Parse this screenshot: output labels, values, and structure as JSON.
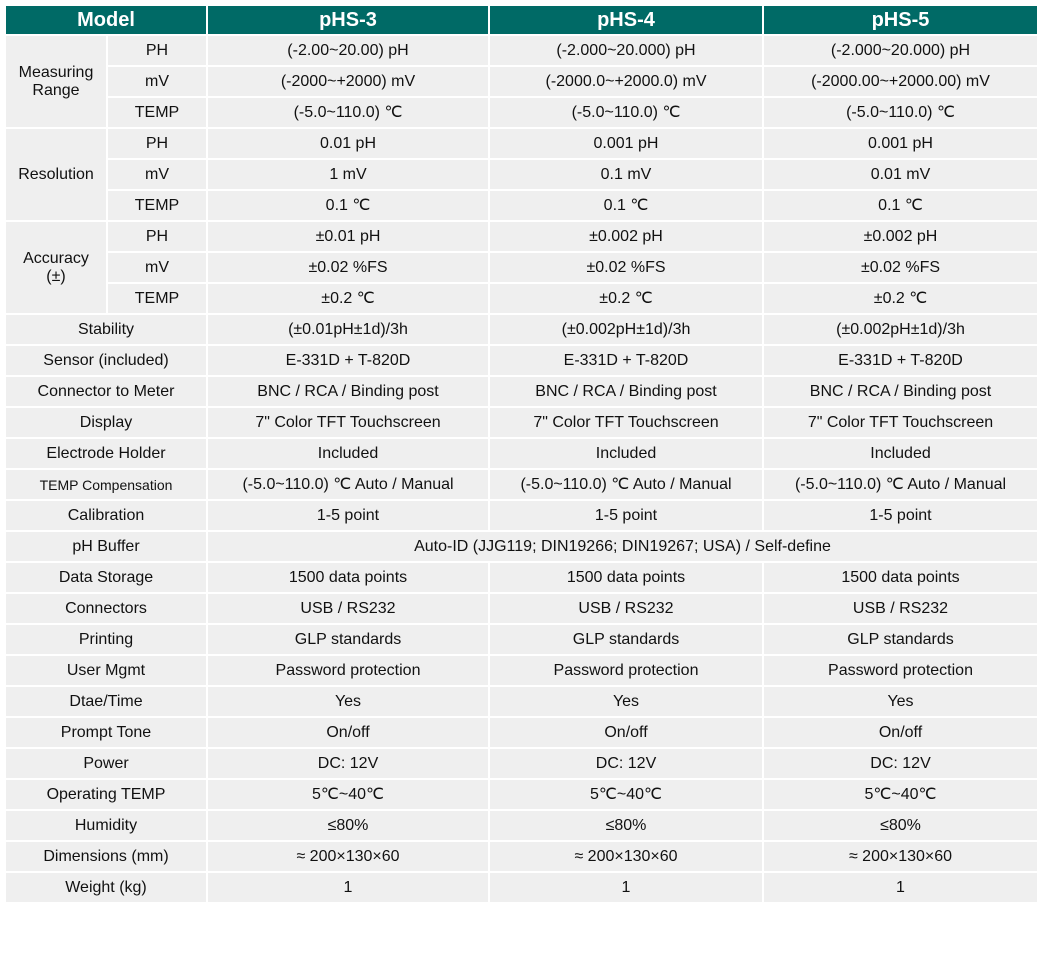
{
  "colors": {
    "header": "#006a66",
    "cell": "#efefef"
  },
  "header": [
    "Model",
    "pHS-3",
    "pHS-4",
    "pHS-5"
  ],
  "groups": [
    {
      "label": "Measuring Range",
      "rows": [
        {
          "sub": "PH",
          "values": [
            "(-2.00~20.00) pH",
            "(-2.000~20.000) pH",
            "(-2.000~20.000) pH"
          ]
        },
        {
          "sub": "mV",
          "values": [
            "(-2000~+2000) mV",
            "(-2000.0~+2000.0) mV",
            "(-2000.00~+2000.00) mV"
          ]
        },
        {
          "sub": "TEMP",
          "values": [
            "(-5.0~110.0) ℃",
            "(-5.0~110.0) ℃",
            "(-5.0~110.0) ℃"
          ]
        }
      ]
    },
    {
      "label": "Resolution",
      "rows": [
        {
          "sub": "PH",
          "values": [
            "0.01 pH",
            "0.001 pH",
            "0.001 pH"
          ]
        },
        {
          "sub": "mV",
          "values": [
            "1 mV",
            "0.1 mV",
            "0.01 mV"
          ]
        },
        {
          "sub": "TEMP",
          "values": [
            "0.1 ℃",
            "0.1 ℃",
            "0.1 ℃"
          ]
        }
      ]
    },
    {
      "label": "Accuracy (±)",
      "rows": [
        {
          "sub": "PH",
          "values": [
            "±0.01 pH",
            "±0.002 pH",
            "±0.002 pH"
          ]
        },
        {
          "sub": "mV",
          "values": [
            "±0.02 %FS",
            "±0.02 %FS",
            "±0.02 %FS"
          ]
        },
        {
          "sub": "TEMP",
          "values": [
            "±0.2 ℃",
            "±0.2 ℃",
            "±0.2 ℃"
          ]
        }
      ]
    }
  ],
  "rows": [
    {
      "label": "Stability",
      "values": [
        "(±0.01pH±1d)/3h",
        "(±0.002pH±1d)/3h",
        "(±0.002pH±1d)/3h"
      ]
    },
    {
      "label": "Sensor (included)",
      "values": [
        "E-331D + T-820D",
        "E-331D + T-820D",
        "E-331D + T-820D"
      ]
    },
    {
      "label": "Connector to Meter",
      "values": [
        "BNC / RCA / Binding post",
        "BNC / RCA / Binding post",
        "BNC / RCA / Binding post"
      ]
    },
    {
      "label": "Display",
      "values": [
        "7\" Color TFT Touchscreen",
        "7\" Color TFT Touchscreen",
        "7\" Color TFT Touchscreen"
      ]
    },
    {
      "label": "Electrode Holder",
      "values": [
        "Included",
        "Included",
        "Included"
      ]
    },
    {
      "label": "TEMP Compensation",
      "values": [
        "(-5.0~110.0) ℃ Auto / Manual",
        "(-5.0~110.0) ℃ Auto / Manual",
        "(-5.0~110.0) ℃ Auto / Manual"
      ]
    },
    {
      "label": "Calibration",
      "values": [
        "1-5 point",
        "1-5 point",
        "1-5 point"
      ]
    },
    {
      "label": "pH Buffer",
      "values": [
        "Auto-ID (JJG119; DIN19266; DIN19267; USA) / Self-define"
      ]
    },
    {
      "label": "Data Storage",
      "values": [
        "1500 data points",
        "1500 data points",
        "1500 data points"
      ]
    },
    {
      "label": "Connectors",
      "values": [
        "USB / RS232",
        "USB / RS232",
        "USB / RS232"
      ]
    },
    {
      "label": "Printing",
      "values": [
        "GLP standards",
        "GLP standards",
        "GLP standards"
      ]
    },
    {
      "label": "User Mgmt",
      "values": [
        "Password protection",
        "Password protection",
        "Password protection"
      ]
    },
    {
      "label": "Dtae/Time",
      "values": [
        "Yes",
        "Yes",
        "Yes"
      ]
    },
    {
      "label": "Prompt Tone",
      "values": [
        "On/off",
        "On/off",
        "On/off"
      ]
    },
    {
      "label": "Power",
      "values": [
        "DC: 12V",
        "DC: 12V",
        "DC: 12V"
      ]
    },
    {
      "label": "Operating TEMP",
      "values": [
        "5℃~40℃",
        "5℃~40℃",
        "5℃~40℃"
      ]
    },
    {
      "label": "Humidity",
      "values": [
        "≤80%",
        "≤80%",
        "≤80%"
      ]
    },
    {
      "label": "Dimensions (mm)",
      "values": [
        "≈ 200×130×60",
        "≈ 200×130×60",
        "≈ 200×130×60"
      ]
    },
    {
      "label": "Weight (kg)",
      "values": [
        "1",
        "1",
        "1"
      ]
    }
  ]
}
